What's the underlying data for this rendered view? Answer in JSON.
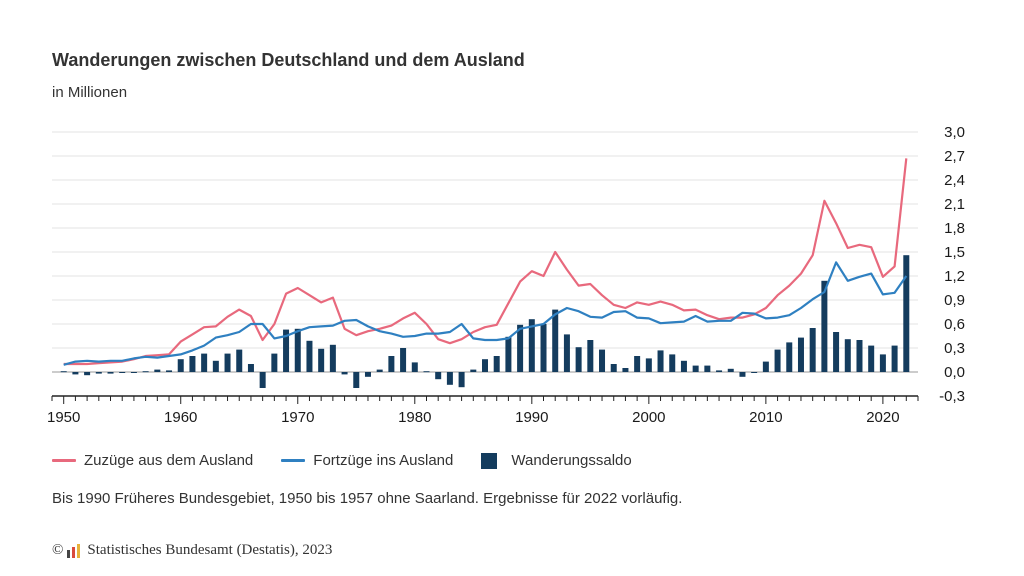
{
  "title": "Wanderungen zwischen Deutschland und dem Ausland",
  "subtitle": "in Millionen",
  "note": "Bis 1990 Früheres Bundesgebiet, 1950 bis 1957 ohne Saarland. Ergebnisse für 2022 vorläufig.",
  "footer": {
    "copyright_symbol": "©",
    "source": "Statistisches Bundesamt (Destatis), 2023",
    "logo_icon": "destatis-logo-icon"
  },
  "colors": {
    "zuzuege": "#e8697d",
    "fortzuege": "#2f80c1",
    "saldo": "#143c5e",
    "grid": "#e3e3e3",
    "axis": "#222222"
  },
  "legend": [
    {
      "label": "Zuzüge aus dem Ausland",
      "kind": "line",
      "color": "#e8697d"
    },
    {
      "label": "Fortzüge ins Ausland",
      "kind": "line",
      "color": "#2f80c1"
    },
    {
      "label": "Wanderungssaldo",
      "kind": "bar",
      "color": "#143c5e"
    }
  ],
  "chart_data": {
    "type": "bar+line",
    "title": "Wanderungen zwischen Deutschland und dem Ausland",
    "subtitle": "in Millionen",
    "ylim": [
      -0.3,
      3.0
    ],
    "yticks": [
      3.0,
      2.7,
      2.4,
      2.1,
      1.8,
      1.5,
      1.2,
      0.9,
      0.6,
      0.3,
      0.0,
      -0.3
    ],
    "ytick_labels": [
      "3,0",
      "2,7",
      "2,4",
      "2,1",
      "1,8",
      "1,5",
      "1,2",
      "0,9",
      "0,6",
      "0,3",
      "0,0",
      "-0,3"
    ],
    "y_axis_side": "right",
    "xlim": [
      1949,
      2023
    ],
    "xticks": [
      1950,
      1960,
      1970,
      1980,
      1990,
      2000,
      2010,
      2020
    ],
    "grid": "horizontal",
    "legend_position": "bottom",
    "years": [
      1950,
      1951,
      1952,
      1953,
      1954,
      1955,
      1956,
      1957,
      1958,
      1959,
      1960,
      1961,
      1962,
      1963,
      1964,
      1965,
      1966,
      1967,
      1968,
      1969,
      1970,
      1971,
      1972,
      1973,
      1974,
      1975,
      1976,
      1977,
      1978,
      1979,
      1980,
      1981,
      1982,
      1983,
      1984,
      1985,
      1986,
      1987,
      1988,
      1989,
      1990,
      1991,
      1992,
      1993,
      1994,
      1995,
      1996,
      1997,
      1998,
      1999,
      2000,
      2001,
      2002,
      2003,
      2004,
      2005,
      2006,
      2007,
      2008,
      2009,
      2010,
      2011,
      2012,
      2013,
      2014,
      2015,
      2016,
      2017,
      2018,
      2019,
      2020,
      2021,
      2022
    ],
    "series": [
      {
        "name": "Zuzüge aus dem Ausland",
        "kind": "line",
        "values": [
          0.1,
          0.1,
          0.1,
          0.11,
          0.12,
          0.13,
          0.16,
          0.2,
          0.21,
          0.22,
          0.38,
          0.47,
          0.56,
          0.57,
          0.69,
          0.78,
          0.7,
          0.4,
          0.6,
          0.98,
          1.05,
          0.96,
          0.87,
          0.93,
          0.54,
          0.46,
          0.51,
          0.54,
          0.58,
          0.67,
          0.74,
          0.6,
          0.41,
          0.36,
          0.41,
          0.5,
          0.56,
          0.59,
          0.86,
          1.13,
          1.26,
          1.2,
          1.5,
          1.28,
          1.08,
          1.1,
          0.96,
          0.84,
          0.8,
          0.87,
          0.84,
          0.88,
          0.84,
          0.77,
          0.78,
          0.71,
          0.66,
          0.68,
          0.68,
          0.72,
          0.8,
          0.96,
          1.08,
          1.23,
          1.46,
          2.14,
          1.86,
          1.55,
          1.59,
          1.56,
          1.19,
          1.32,
          2.67
        ]
      },
      {
        "name": "Fortzüge ins Ausland",
        "kind": "line",
        "values": [
          0.09,
          0.13,
          0.14,
          0.13,
          0.14,
          0.14,
          0.17,
          0.19,
          0.18,
          0.2,
          0.22,
          0.27,
          0.33,
          0.43,
          0.46,
          0.5,
          0.6,
          0.6,
          0.42,
          0.45,
          0.51,
          0.56,
          0.57,
          0.58,
          0.64,
          0.65,
          0.57,
          0.51,
          0.48,
          0.44,
          0.45,
          0.48,
          0.48,
          0.5,
          0.6,
          0.42,
          0.4,
          0.4,
          0.42,
          0.54,
          0.57,
          0.6,
          0.72,
          0.8,
          0.76,
          0.69,
          0.68,
          0.75,
          0.76,
          0.68,
          0.67,
          0.61,
          0.62,
          0.63,
          0.7,
          0.63,
          0.64,
          0.64,
          0.74,
          0.73,
          0.67,
          0.68,
          0.71,
          0.8,
          0.91,
          1.0,
          1.37,
          1.14,
          1.19,
          1.23,
          0.97,
          0.99,
          1.2
        ]
      },
      {
        "name": "Wanderungssaldo",
        "kind": "bar",
        "values": [
          0.01,
          -0.03,
          -0.04,
          -0.02,
          -0.02,
          -0.01,
          -0.01,
          0.01,
          0.03,
          0.02,
          0.16,
          0.2,
          0.23,
          0.14,
          0.23,
          0.28,
          0.1,
          -0.2,
          0.23,
          0.53,
          0.54,
          0.39,
          0.29,
          0.34,
          -0.03,
          -0.2,
          -0.06,
          0.03,
          0.2,
          0.3,
          0.12,
          0.01,
          -0.09,
          -0.16,
          -0.19,
          0.03,
          0.16,
          0.2,
          0.44,
          0.59,
          0.66,
          0.6,
          0.78,
          0.47,
          0.31,
          0.4,
          0.28,
          0.1,
          0.05,
          0.2,
          0.17,
          0.27,
          0.22,
          0.14,
          0.08,
          0.08,
          0.02,
          0.04,
          -0.06,
          -0.01,
          0.13,
          0.28,
          0.37,
          0.43,
          0.55,
          1.14,
          0.5,
          0.41,
          0.4,
          0.33,
          0.22,
          0.33,
          1.46
        ]
      }
    ]
  }
}
